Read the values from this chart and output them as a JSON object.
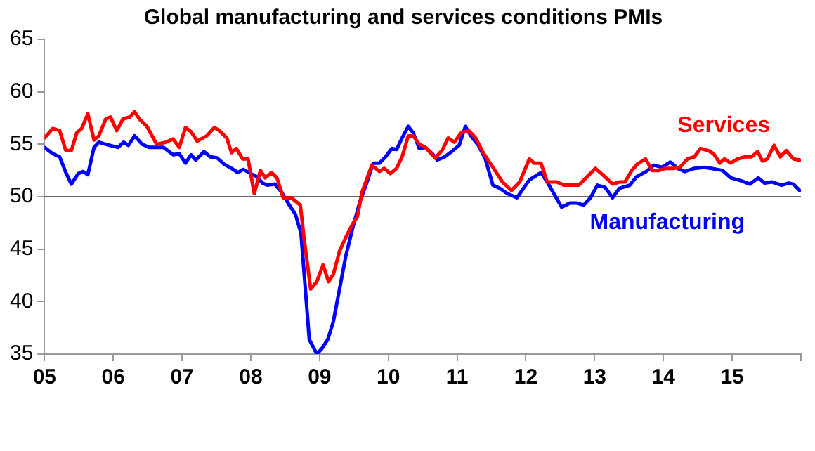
{
  "chart_data": {
    "type": "line",
    "title": "Global manufacturing and services conditions PMIs",
    "xlim": [
      2005,
      2016
    ],
    "xticks": [
      {
        "value": 2005,
        "label": "05"
      },
      {
        "value": 2006,
        "label": "06"
      },
      {
        "value": 2007,
        "label": "07"
      },
      {
        "value": 2008,
        "label": "08"
      },
      {
        "value": 2009,
        "label": "09"
      },
      {
        "value": 2010,
        "label": "10"
      },
      {
        "value": 2011,
        "label": "11"
      },
      {
        "value": 2012,
        "label": "12"
      },
      {
        "value": 2013,
        "label": "13"
      },
      {
        "value": 2014,
        "label": "14"
      },
      {
        "value": 2015,
        "label": "15"
      },
      {
        "value": 2016,
        "label": null
      }
    ],
    "ylim": [
      35,
      65
    ],
    "yticks": [
      35,
      40,
      45,
      50,
      55,
      60,
      65
    ],
    "ref_lines": [
      {
        "axis": "y",
        "value": 50,
        "color": "#666666"
      }
    ],
    "legend": false,
    "marker": "none",
    "line_style": "solid",
    "series": [
      {
        "name": "Services",
        "color": "#ff0000",
        "x": [
          2005.0,
          2005.12,
          2005.22,
          2005.31,
          2005.39,
          2005.47,
          2005.54,
          2005.63,
          2005.72,
          2005.79,
          2005.89,
          2005.96,
          2006.05,
          2006.14,
          2006.24,
          2006.31,
          2006.38,
          2006.49,
          2006.63,
          2006.77,
          2006.87,
          2006.96,
          2007.05,
          2007.13,
          2007.22,
          2007.36,
          2007.47,
          2007.54,
          2007.65,
          2007.72,
          2007.79,
          2007.88,
          2007.96,
          2008.05,
          2008.14,
          2008.21,
          2008.3,
          2008.38,
          2008.47,
          2008.59,
          2008.72,
          2008.78,
          2008.87,
          2008.96,
          2009.05,
          2009.13,
          2009.2,
          2009.29,
          2009.38,
          2009.48,
          2009.55,
          2009.62,
          2009.76,
          2009.87,
          2009.94,
          2010.03,
          2010.12,
          2010.2,
          2010.29,
          2010.36,
          2010.45,
          2010.54,
          2010.68,
          2010.78,
          2010.87,
          2010.96,
          2011.06,
          2011.17,
          2011.27,
          2011.38,
          2011.52,
          2011.66,
          2011.79,
          2011.91,
          2012.05,
          2012.12,
          2012.22,
          2012.31,
          2012.45,
          2012.56,
          2012.77,
          2012.89,
          2013.01,
          2013.15,
          2013.26,
          2013.36,
          2013.44,
          2013.54,
          2013.62,
          2013.74,
          2013.84,
          2013.93,
          2014.03,
          2014.14,
          2014.24,
          2014.35,
          2014.45,
          2014.54,
          2014.65,
          2014.73,
          2014.82,
          2014.89,
          2014.98,
          2015.08,
          2015.19,
          2015.28,
          2015.37,
          2015.44,
          2015.51,
          2015.61,
          2015.7,
          2015.79,
          2015.89,
          2015.98
        ],
        "values": [
          55.6,
          56.5,
          56.3,
          54.4,
          54.4,
          56.1,
          56.5,
          57.9,
          55.4,
          55.8,
          57.4,
          57.6,
          56.3,
          57.4,
          57.6,
          58.1,
          57.4,
          56.7,
          55.0,
          55.2,
          55.5,
          54.7,
          56.6,
          56.2,
          55.3,
          55.8,
          56.6,
          56.3,
          55.6,
          54.2,
          54.6,
          53.6,
          53.6,
          50.3,
          52.5,
          51.8,
          52.3,
          51.8,
          49.9,
          49.9,
          49.2,
          45.7,
          41.2,
          41.9,
          43.5,
          41.9,
          42.6,
          44.8,
          46.1,
          47.4,
          48.1,
          50.5,
          53.0,
          52.4,
          52.7,
          52.2,
          52.7,
          53.8,
          55.8,
          55.8,
          55.0,
          54.7,
          53.7,
          54.4,
          55.6,
          55.2,
          56.1,
          56.3,
          55.6,
          54.2,
          52.8,
          51.4,
          50.6,
          51.4,
          53.6,
          53.2,
          53.2,
          51.4,
          51.4,
          51.1,
          51.1,
          51.9,
          52.7,
          51.9,
          51.2,
          51.4,
          51.4,
          52.5,
          53.1,
          53.6,
          52.5,
          52.5,
          52.7,
          52.7,
          52.8,
          53.6,
          53.8,
          54.6,
          54.4,
          54.1,
          53.2,
          53.6,
          53.2,
          53.6,
          53.8,
          53.8,
          54.3,
          53.4,
          53.6,
          54.9,
          53.8,
          54.4,
          53.6,
          53.5
        ]
      },
      {
        "name": "Manufacturing",
        "color": "#0000ff",
        "x": [
          2005.0,
          2005.12,
          2005.22,
          2005.31,
          2005.39,
          2005.49,
          2005.56,
          2005.63,
          2005.72,
          2005.79,
          2005.89,
          2006.07,
          2006.15,
          2006.22,
          2006.31,
          2006.42,
          2006.52,
          2006.73,
          2006.87,
          2006.96,
          2007.05,
          2007.13,
          2007.2,
          2007.32,
          2007.41,
          2007.51,
          2007.61,
          2007.72,
          2007.81,
          2007.89,
          2008.0,
          2008.09,
          2008.17,
          2008.24,
          2008.35,
          2008.45,
          2008.56,
          2008.65,
          2008.73,
          2008.85,
          2008.96,
          2009.03,
          2009.12,
          2009.2,
          2009.29,
          2009.38,
          2009.48,
          2009.59,
          2009.69,
          2009.78,
          2009.87,
          2009.96,
          2010.05,
          2010.12,
          2010.2,
          2010.29,
          2010.36,
          2010.45,
          2010.54,
          2010.64,
          2010.71,
          2010.82,
          2010.92,
          2011.03,
          2011.12,
          2011.2,
          2011.31,
          2011.41,
          2011.52,
          2011.62,
          2011.73,
          2011.87,
          2012.05,
          2012.22,
          2012.31,
          2012.52,
          2012.64,
          2012.73,
          2012.84,
          2012.94,
          2013.04,
          2013.15,
          2013.26,
          2013.36,
          2013.51,
          2013.61,
          2013.75,
          2013.86,
          2013.98,
          2014.1,
          2014.21,
          2014.31,
          2014.45,
          2014.59,
          2014.7,
          2014.86,
          2014.98,
          2015.14,
          2015.26,
          2015.38,
          2015.47,
          2015.58,
          2015.72,
          2015.82,
          2015.89,
          2015.98
        ],
        "values": [
          54.7,
          54.1,
          53.8,
          52.3,
          51.2,
          52.2,
          52.4,
          52.1,
          54.7,
          55.2,
          55.0,
          54.7,
          55.2,
          54.9,
          55.8,
          55.0,
          54.7,
          54.7,
          54.0,
          54.1,
          53.2,
          54.0,
          53.5,
          54.3,
          53.8,
          53.7,
          53.1,
          52.7,
          52.3,
          52.6,
          52.2,
          51.9,
          51.3,
          51.1,
          51.2,
          50.4,
          49.2,
          48.3,
          46.5,
          36.4,
          35.0,
          35.5,
          36.4,
          38.1,
          41.2,
          44.3,
          47.0,
          49.6,
          51.4,
          53.2,
          53.2,
          53.8,
          54.6,
          54.5,
          55.6,
          56.7,
          56.1,
          54.6,
          54.7,
          54.1,
          53.5,
          53.8,
          54.3,
          54.9,
          56.7,
          55.8,
          54.9,
          53.6,
          51.1,
          50.8,
          50.3,
          49.9,
          51.6,
          52.3,
          51.4,
          49.0,
          49.4,
          49.4,
          49.2,
          49.9,
          51.1,
          50.9,
          49.9,
          50.8,
          51.1,
          51.9,
          52.4,
          53.0,
          52.8,
          53.3,
          52.7,
          52.4,
          52.7,
          52.8,
          52.7,
          52.5,
          51.8,
          51.5,
          51.2,
          51.8,
          51.3,
          51.4,
          51.1,
          51.3,
          51.2,
          50.6
        ]
      }
    ]
  }
}
